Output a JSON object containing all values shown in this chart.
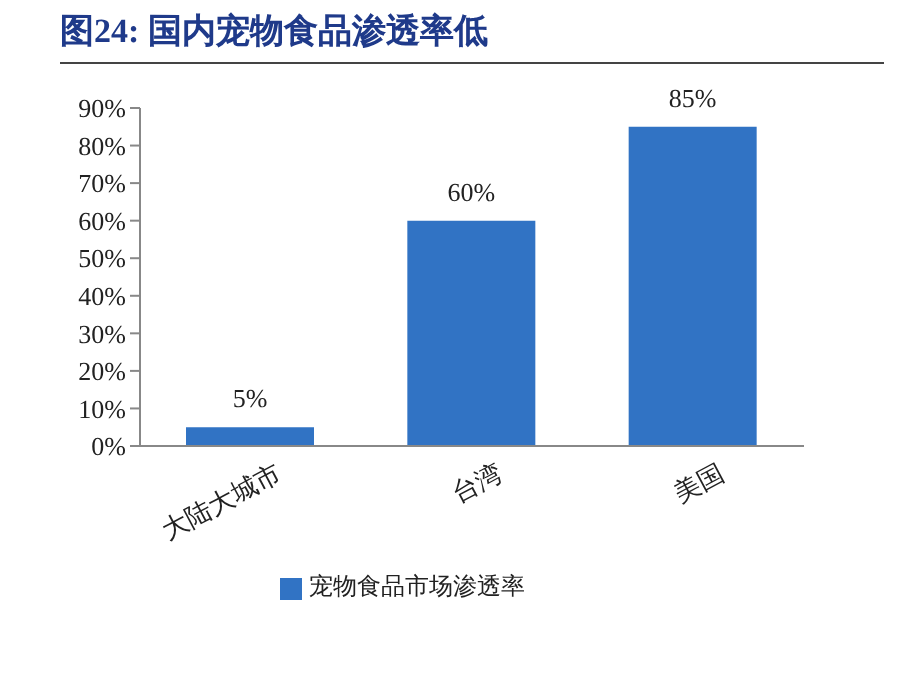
{
  "chart_data": {
    "type": "bar",
    "title": "图24:  国内宠物食品渗透率低",
    "categories": [
      "大陆大城市",
      "台湾",
      "美国"
    ],
    "series": [
      {
        "name": "宠物食品市场渗透率",
        "color": "#3173c4",
        "values": [
          5,
          60,
          85
        ],
        "value_labels": [
          "5%",
          "60%",
          "85%"
        ]
      }
    ],
    "ylim": [
      0,
      90
    ],
    "yticks": [
      {
        "value": 0,
        "label": "0%"
      },
      {
        "value": 10,
        "label": "10%"
      },
      {
        "value": 20,
        "label": "20%"
      },
      {
        "value": 30,
        "label": "30%"
      },
      {
        "value": 40,
        "label": "40%"
      },
      {
        "value": 50,
        "label": "50%"
      },
      {
        "value": 60,
        "label": "60%"
      },
      {
        "value": 70,
        "label": "70%"
      },
      {
        "value": 80,
        "label": "80%"
      },
      {
        "value": 90,
        "label": "90%"
      }
    ],
    "grid": false,
    "legend": "bottom"
  }
}
